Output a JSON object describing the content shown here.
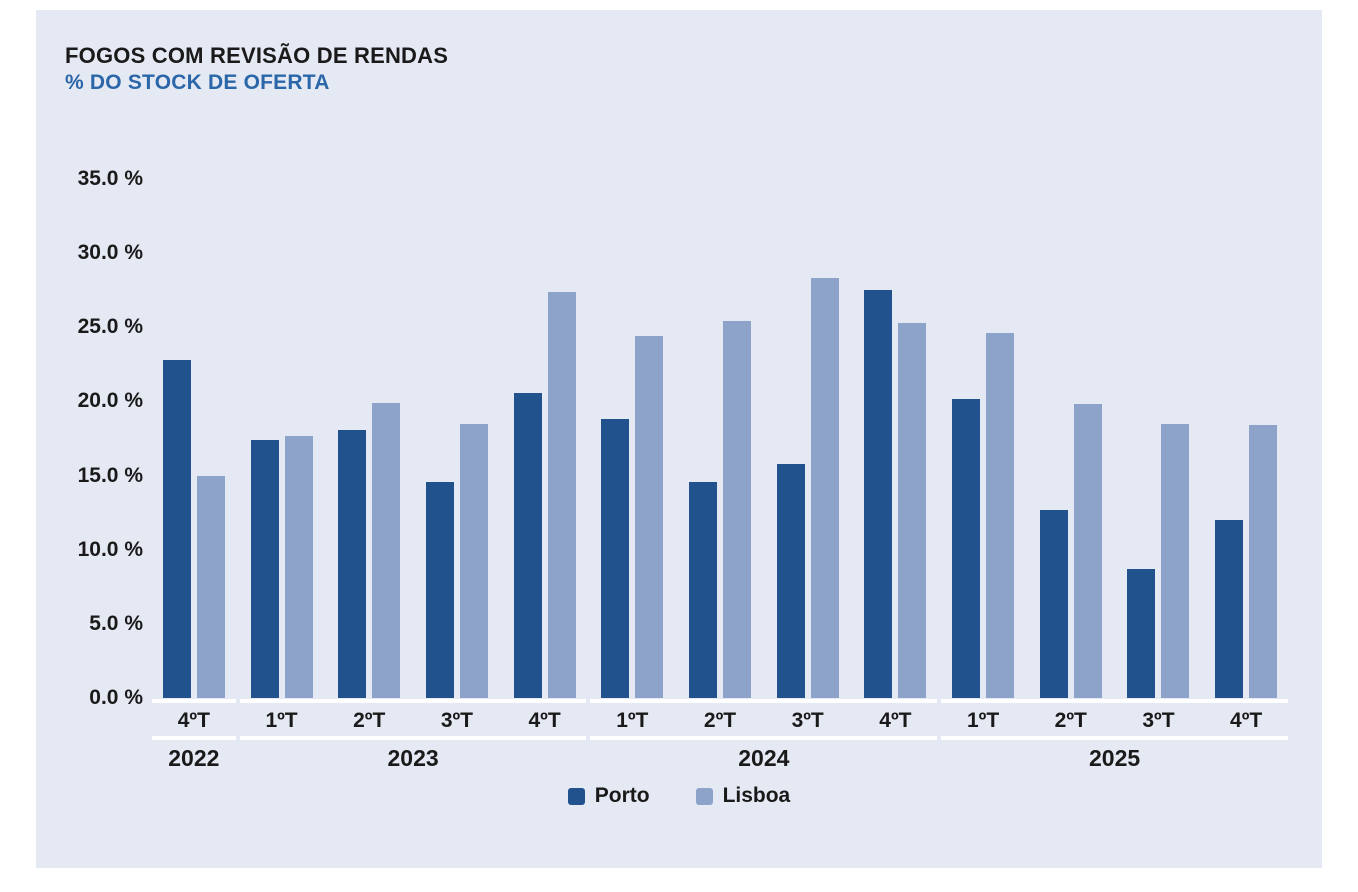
{
  "chart_data": {
    "type": "bar",
    "title": "FOGOS COM REVISÃO DE RENDAS",
    "subtitle": "% DO STOCK DE OFERTA",
    "ylim": [
      0,
      35
    ],
    "grid": "off",
    "legend_position": "bottom-center",
    "y_ticks": [
      {
        "value": 35,
        "label": "35.0 %"
      },
      {
        "value": 30,
        "label": "30.0 %"
      },
      {
        "value": 25,
        "label": "25.0 %"
      },
      {
        "value": 20,
        "label": "20.0 %"
      },
      {
        "value": 15,
        "label": "15.0 %"
      },
      {
        "value": 10,
        "label": "10.0 %"
      },
      {
        "value": 5,
        "label": "5.0 %"
      },
      {
        "value": 0,
        "label": "0.0 %"
      }
    ],
    "x_groups": [
      {
        "year": "2022",
        "quarters": [
          "4ºT"
        ]
      },
      {
        "year": "2023",
        "quarters": [
          "1ºT",
          "2ºT",
          "3ºT",
          "4ºT"
        ]
      },
      {
        "year": "2024",
        "quarters": [
          "1ºT",
          "2ºT",
          "3ºT",
          "4ºT"
        ]
      },
      {
        "year": "2025",
        "quarters": [
          "1ºT",
          "2ºT",
          "3ºT",
          "4ºT"
        ]
      }
    ],
    "categories": [
      "4ºT 2022",
      "1ºT 2023",
      "2ºT 2023",
      "3ºT 2023",
      "4ºT 2023",
      "1ºT 2024",
      "2ºT 2024",
      "3ºT 2024",
      "4ºT 2024",
      "1ºT 2025",
      "2ºT 2025",
      "3ºT 2025",
      "4ºT 2025"
    ],
    "series": [
      {
        "name": "Porto",
        "color": "#21528e",
        "values": [
          22.8,
          17.4,
          18.1,
          14.6,
          20.6,
          18.8,
          14.6,
          15.8,
          27.5,
          20.2,
          12.7,
          8.7,
          12.0
        ]
      },
      {
        "name": "Lisboa",
        "color": "#8ea3c9",
        "values": [
          15.0,
          17.7,
          19.9,
          18.5,
          27.4,
          24.4,
          25.4,
          28.3,
          25.3,
          24.6,
          19.8,
          18.5,
          18.4
        ]
      }
    ]
  },
  "colors": {
    "panel_bg": "#e5e9f4",
    "page_bg": "#ffffff",
    "axis_line": "#ffffff",
    "title_text": "#1a1a1a",
    "subtitle_text": "#2b67a8",
    "axis_text": "#1a1a1a",
    "porto": "#21528e",
    "lisboa": "#8ea3c9"
  }
}
